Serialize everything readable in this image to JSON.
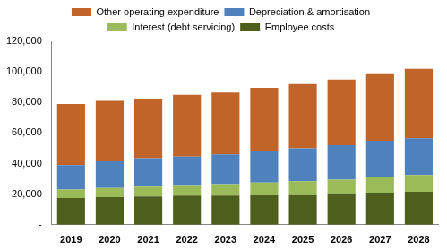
{
  "chart_data": {
    "type": "bar",
    "stacked": true,
    "grid": false,
    "legend": "top",
    "categories": [
      "2019",
      "2020",
      "2021",
      "2022",
      "2023",
      "2024",
      "2025",
      "2026",
      "2027",
      "2028"
    ],
    "series": [
      {
        "name": "Employee costs",
        "color": "#4e5e1c",
        "values": [
          17500,
          18000,
          18500,
          19000,
          19000,
          19500,
          20000,
          20500,
          21000,
          21500
        ]
      },
      {
        "name": "Interest (debt servicing)",
        "color": "#9bbb59",
        "values": [
          5500,
          6000,
          6500,
          7000,
          7500,
          8000,
          8500,
          9000,
          10000,
          11000
        ]
      },
      {
        "name": "Depreciation & amortisation",
        "color": "#4f81bd",
        "values": [
          16000,
          17500,
          18500,
          18500,
          19500,
          21000,
          21500,
          22500,
          24000,
          24000
        ]
      },
      {
        "name": "Other operating expenditure",
        "color": "#c0642a",
        "values": [
          40000,
          39500,
          39000,
          40500,
          40500,
          41000,
          42000,
          43000,
          44000,
          45500
        ]
      }
    ],
    "ylim": [
      0,
      120000
    ],
    "yticks": [
      {
        "value": 0,
        "label": "-"
      },
      {
        "value": 20000,
        "label": "20,000"
      },
      {
        "value": 40000,
        "label": "40,000"
      },
      {
        "value": 60000,
        "label": "60,000"
      },
      {
        "value": 80000,
        "label": "80,000"
      },
      {
        "value": 100000,
        "label": "100,000"
      },
      {
        "value": 120000,
        "label": "120,000"
      }
    ]
  }
}
